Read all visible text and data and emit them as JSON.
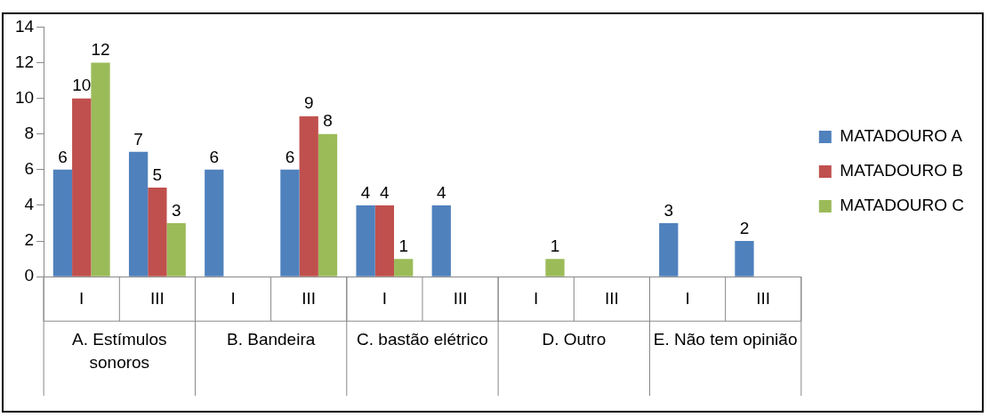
{
  "chart_data": {
    "type": "bar",
    "categories": [
      "I",
      "III",
      "I",
      "III",
      "I",
      "III",
      "I",
      "III",
      "I",
      "III"
    ],
    "annotations": [
      "A. Estímulos sonoros",
      "B. Bandeira",
      "C. bastão elétrico",
      "D. Outro",
      "E. Não tem opinião"
    ],
    "series": [
      {
        "name": "MATADOURO A",
        "color": "#4f81bd",
        "values": [
          6,
          7,
          6,
          6,
          4,
          4,
          0,
          0,
          3,
          2
        ],
        "value_labels": [
          "6",
          "7",
          "6",
          "6",
          "4",
          "4",
          null,
          null,
          "3",
          "2"
        ]
      },
      {
        "name": "MATADOURO B",
        "color": "#c0504d",
        "values": [
          10,
          5,
          0,
          9,
          4,
          0,
          0,
          0,
          0,
          0
        ],
        "value_labels": [
          "10",
          "5",
          null,
          "9",
          "4",
          null,
          null,
          null,
          null,
          null
        ]
      },
      {
        "name": "MATADOURO C",
        "color": "#9bbb59",
        "values": [
          12,
          3,
          0,
          8,
          1,
          0,
          1,
          0,
          0,
          0
        ],
        "value_labels": [
          "12",
          "3",
          null,
          "8",
          "1",
          null,
          "1",
          null,
          null,
          null
        ]
      }
    ],
    "ylim": [
      0,
      14
    ],
    "yticks": [
      0,
      2,
      4,
      6,
      8,
      10,
      12,
      14
    ],
    "grid": false,
    "legend": "right"
  }
}
